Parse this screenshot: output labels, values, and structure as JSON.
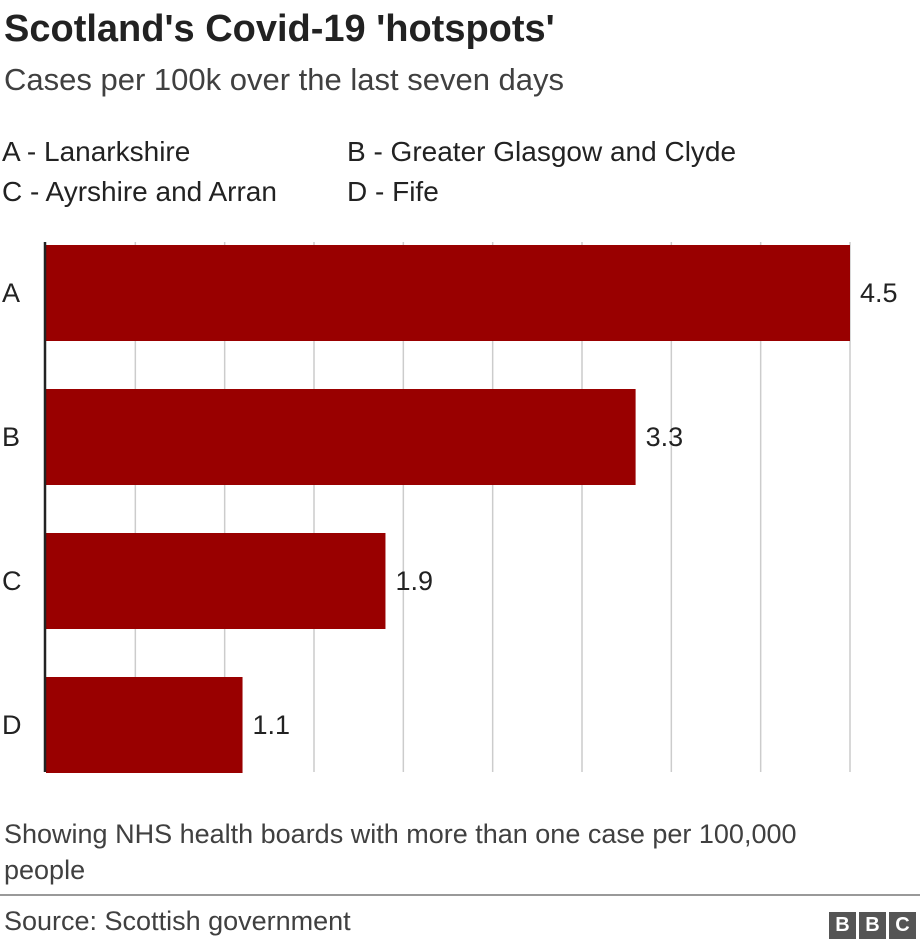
{
  "title": "Scotland's Covid-19 'hotspots'",
  "subtitle": "Cases per 100k over the last seven days",
  "legend": [
    {
      "key": "A",
      "text": "A - Lanarkshire"
    },
    {
      "key": "B",
      "text": "B - Greater Glasgow and Clyde"
    },
    {
      "key": "C",
      "text": "C - Ayrshire and Arran"
    },
    {
      "key": "D",
      "text": "D - Fife"
    }
  ],
  "footnote": "Showing NHS health boards with more than one case per 100,000 people",
  "source": "Source: Scottish government",
  "logo": [
    "B",
    "B",
    "C"
  ],
  "colors": {
    "bar": "#990000",
    "grid": "#cccccc",
    "axis": "#222222"
  },
  "chart_data": {
    "type": "bar",
    "orientation": "horizontal",
    "title": "Scotland's Covid-19 'hotspots'",
    "subtitle": "Cases per 100k over the last seven days",
    "categories": [
      "A",
      "B",
      "C",
      "D"
    ],
    "values": [
      4.5,
      3.3,
      1.9,
      1.1
    ],
    "data_labels": [
      "4.5",
      "3.3",
      "1.9",
      "1.1"
    ],
    "xlim": [
      0,
      4.5
    ],
    "grid": true,
    "gridline_interval": 0.5,
    "xlabel": "",
    "ylabel": ""
  }
}
